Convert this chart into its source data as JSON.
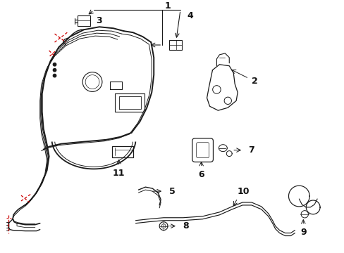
{
  "bg_color": "#ffffff",
  "line_color": "#1a1a1a",
  "red_color": "#cc0000",
  "label_color": "#111111",
  "figsize": [
    4.89,
    3.6
  ],
  "dpi": 100,
  "xlim": [
    0,
    4.89
  ],
  "ylim": [
    0,
    3.6
  ]
}
